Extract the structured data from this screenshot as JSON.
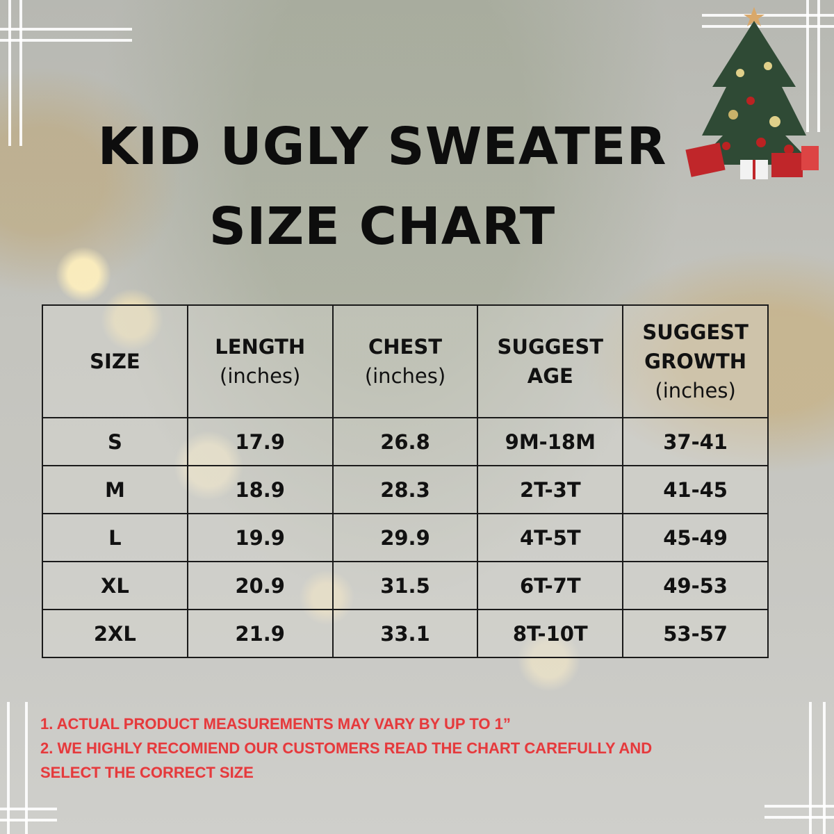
{
  "title": {
    "line1": "KID UGLY SWEATER",
    "line2": "SIZE CHART"
  },
  "table": {
    "headers": [
      [
        "SIZE"
      ],
      [
        "LENGTH",
        "(inches)"
      ],
      [
        "CHEST",
        "(inches)"
      ],
      [
        "SUGGEST",
        "AGE"
      ],
      [
        "SUGGEST",
        "GROWTH",
        "(inches)"
      ]
    ],
    "rows": [
      [
        "S",
        "17.9",
        "26.8",
        "9M-18M",
        "37-41"
      ],
      [
        "M",
        "18.9",
        "28.3",
        "2T-3T",
        "41-45"
      ],
      [
        "L",
        "19.9",
        "29.9",
        "4T-5T",
        "45-49"
      ],
      [
        "XL",
        "20.9",
        "31.5",
        "6T-7T",
        "49-53"
      ],
      [
        "2XL",
        "21.9",
        "33.1",
        "8T-10T",
        "53-57"
      ]
    ]
  },
  "notes": [
    "1. ACTUAL PRODUCT MEASUREMENTS MAY VARY BY UP TO 1”",
    "2. WE HIGHLY RECOMIEND OUR CUSTOMERS READ THE CHART CAREFULLY AND",
    "SELECT THE CORRECT SIZE"
  ],
  "colors": {
    "note_text": "#e33b3b",
    "table_border": "#1a1a1a",
    "title": "#0d0d0d"
  },
  "decorations": {
    "image": "christmas-tree-icon"
  }
}
